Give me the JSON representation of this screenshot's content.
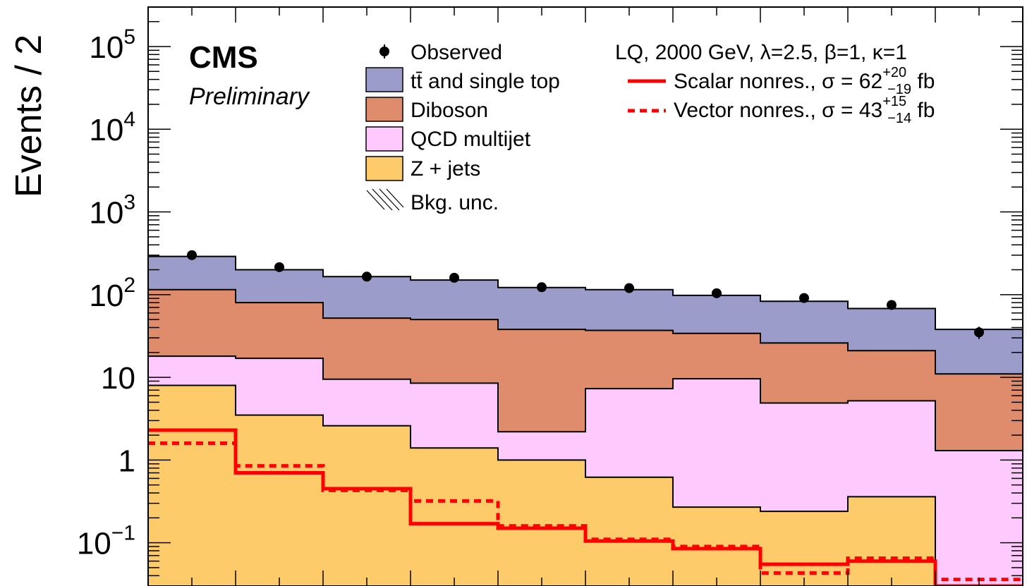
{
  "chart_data": {
    "type": "bar",
    "stacked": true,
    "ylabel": "Events / 2",
    "yscale": "log",
    "ylim": [
      0.03,
      300000
    ],
    "y_ticks": [
      {
        "value": 100000,
        "base": "10",
        "exp": "5"
      },
      {
        "value": 10000,
        "base": "10",
        "exp": "4"
      },
      {
        "value": 1000,
        "base": "10",
        "exp": "3"
      },
      {
        "value": 100,
        "base": "10",
        "exp": "2"
      },
      {
        "value": 10,
        "base": "10",
        "exp": ""
      },
      {
        "value": 1,
        "base": "1",
        "exp": ""
      },
      {
        "value": 0.1,
        "base": "10",
        "exp": "−1"
      }
    ],
    "bins": 10,
    "series": [
      {
        "name": "Z + jets",
        "color": "#fecb6a",
        "values": [
          8.0,
          3.5,
          2.6,
          1.4,
          1.0,
          0.62,
          0.27,
          0.24,
          0.36,
          0.03
        ]
      },
      {
        "name": "QCD multijet",
        "color": "#fec9fc",
        "values": [
          18.0,
          17.0,
          9.5,
          8.5,
          2.2,
          7.3,
          9.6,
          4.9,
          5.2,
          1.3
        ]
      },
      {
        "name": "Diboson",
        "color": "#de8c6c",
        "values": [
          115,
          80,
          52,
          50,
          38,
          37,
          34,
          26,
          21,
          11
        ]
      },
      {
        "name": "tt̄ and single top",
        "color": "#9c9ccb",
        "values": [
          290,
          200,
          165,
          150,
          122,
          115,
          98,
          83,
          68,
          38
        ]
      }
    ],
    "observed": {
      "name": "Observed",
      "values": [
        300,
        215,
        165,
        160,
        123,
        120,
        104,
        91,
        75,
        35
      ]
    },
    "signals": [
      {
        "name": "Scalar nonres., σ = 62",
        "sup": "+20",
        "sub": "−19",
        "unit": " fb",
        "color": "#ff0000",
        "style": "solid",
        "values": [
          2.3,
          0.7,
          0.45,
          0.17,
          0.15,
          0.105,
          0.085,
          0.055,
          0.06,
          0.025
        ]
      },
      {
        "name": "Vector nonres., σ = 43",
        "sup": "+15",
        "sub": "−14",
        "unit": " fb",
        "color": "#ff0000",
        "style": "dotted",
        "values": [
          1.6,
          0.85,
          0.43,
          0.32,
          0.16,
          0.11,
          0.09,
          0.043,
          0.065,
          0.036
        ]
      }
    ],
    "uncertainty_label": "Bkg. unc.",
    "annotations": {
      "cms": "CMS",
      "preliminary": "Preliminary",
      "model": "LQ, 2000 GeV, λ=2.5, β=1, κ=1"
    },
    "legend_placement": "top"
  }
}
